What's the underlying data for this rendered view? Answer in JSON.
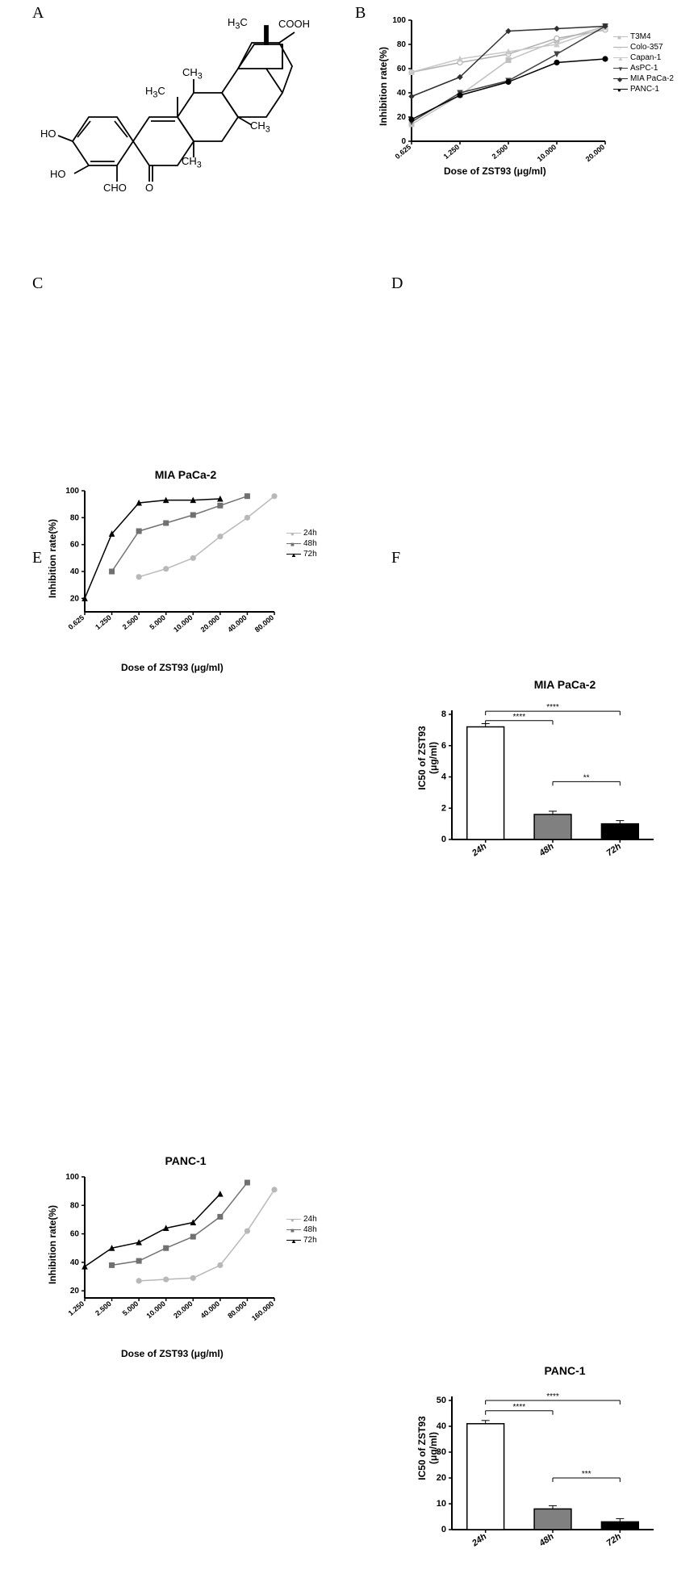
{
  "panelA": {
    "label": "A",
    "molecule": {
      "labels": {
        "cooh": "COOH",
        "ch3_top": "H₃C",
        "ch3_r1": "CH₃",
        "ch3_r2": "CH₃",
        "h3c_l": "H₃C",
        "ho1": "HO",
        "ho2": "HO",
        "cho": "CHO",
        "o": "O"
      }
    }
  },
  "panelB": {
    "label": "B",
    "xlabel": "Dose of ZST93 (μg/ml)",
    "ylabel": "Inhibition rate(%)",
    "xticks": [
      "0.625",
      "1.250",
      "2.500",
      "10.000",
      "20.000"
    ],
    "yticks": [
      0,
      20,
      40,
      60,
      80,
      100
    ],
    "ylim": [
      0,
      100
    ],
    "series": [
      {
        "name": "T3M4",
        "color": "#c0c0c0",
        "marker": "■",
        "values": [
          14,
          38,
          67,
          83,
          95
        ]
      },
      {
        "name": "Colo-357",
        "color": "#b0b0b0",
        "marker": "○",
        "values": [
          57,
          65,
          72,
          85,
          92
        ]
      },
      {
        "name": "Capan-1",
        "color": "#c8c8c8",
        "marker": "▲",
        "values": [
          57,
          68,
          74,
          80,
          94
        ]
      },
      {
        "name": "AsPC-1",
        "color": "#404040",
        "marker": "▼",
        "values": [
          16,
          40,
          50,
          72,
          95
        ]
      },
      {
        "name": "MIA PaCa-2",
        "color": "#303030",
        "marker": "◆",
        "values": [
          37,
          53,
          91,
          93,
          95
        ]
      },
      {
        "name": "PANC-1",
        "color": "#000000",
        "marker": "●",
        "values": [
          18,
          38,
          49,
          65,
          68
        ]
      }
    ]
  },
  "panelC": {
    "label": "C",
    "title": "MIA PaCa-2",
    "xlabel": "Dose of ZST93 (μg/ml)",
    "ylabel": "Inhibition rate(%)",
    "xticks": [
      "0.625",
      "1.250",
      "2.500",
      "5.000",
      "10.000",
      "20.000",
      "40.000",
      "80.000"
    ],
    "yticks": [
      20,
      40,
      60,
      80,
      100
    ],
    "ylim": [
      10,
      100
    ],
    "series": [
      {
        "name": "24h",
        "color": "#b8b8b8",
        "marker": "●",
        "values": [
          null,
          null,
          36,
          42,
          50,
          66,
          80,
          96
        ]
      },
      {
        "name": "48h",
        "color": "#707070",
        "marker": "■",
        "values": [
          null,
          40,
          70,
          76,
          82,
          89,
          96,
          null
        ]
      },
      {
        "name": "72h",
        "color": "#000000",
        "marker": "▲",
        "values": [
          20,
          68,
          91,
          93,
          93,
          94,
          null,
          null
        ]
      }
    ]
  },
  "panelD": {
    "label": "D",
    "title": "MIA PaCa-2",
    "ylabel": "IC50 of ZST93\n(μg/ml)",
    "xticks": [
      "24h",
      "48h",
      "72h"
    ],
    "yticks": [
      0,
      2,
      4,
      6,
      8
    ],
    "ylim": [
      0,
      8
    ],
    "bars": [
      {
        "label": "24h",
        "value": 7.2,
        "color": "#ffffff"
      },
      {
        "label": "48h",
        "value": 1.6,
        "color": "#808080"
      },
      {
        "label": "72h",
        "value": 1.0,
        "color": "#000000"
      }
    ],
    "sig": [
      {
        "from": 0,
        "to": 1,
        "y": 7.6,
        "text": "****"
      },
      {
        "from": 0,
        "to": 2,
        "y": 8.2,
        "text": "****"
      },
      {
        "from": 1,
        "to": 2,
        "y": 3.7,
        "text": "**"
      }
    ]
  },
  "panelE": {
    "label": "E",
    "title": "PANC-1",
    "xlabel": "Dose of ZST93 (μg/ml)",
    "ylabel": "Inhibition rate(%)",
    "xticks": [
      "1.250",
      "2.500",
      "5.000",
      "10.000",
      "20.000",
      "40.000",
      "80.000",
      "160.000"
    ],
    "yticks": [
      20,
      40,
      60,
      80,
      100
    ],
    "ylim": [
      15,
      100
    ],
    "series": [
      {
        "name": "24h",
        "color": "#b8b8b8",
        "marker": "●",
        "values": [
          null,
          null,
          27,
          28,
          29,
          38,
          62,
          91
        ]
      },
      {
        "name": "48h",
        "color": "#707070",
        "marker": "■",
        "values": [
          null,
          38,
          41,
          50,
          58,
          72,
          96,
          null
        ]
      },
      {
        "name": "72h",
        "color": "#000000",
        "marker": "▲",
        "values": [
          37,
          50,
          54,
          64,
          68,
          88,
          null,
          null
        ]
      }
    ]
  },
  "panelF": {
    "label": "F",
    "title": "PANC-1",
    "ylabel": "IC50 of ZST93\n(μg/ml)",
    "xticks": [
      "24h",
      "48h",
      "72h"
    ],
    "yticks": [
      0,
      10,
      20,
      30,
      40,
      50
    ],
    "ylim": [
      0,
      50
    ],
    "bars": [
      {
        "label": "24h",
        "value": 41,
        "color": "#ffffff"
      },
      {
        "label": "48h",
        "value": 8,
        "color": "#808080"
      },
      {
        "label": "72h",
        "value": 3,
        "color": "#000000"
      }
    ],
    "sig": [
      {
        "from": 0,
        "to": 1,
        "y": 46,
        "text": "****"
      },
      {
        "from": 0,
        "to": 2,
        "y": 50,
        "text": "****"
      },
      {
        "from": 1,
        "to": 2,
        "y": 20,
        "text": "***"
      }
    ]
  },
  "colors": {
    "background": "#ffffff",
    "axis": "#000000",
    "text": "#000000"
  }
}
